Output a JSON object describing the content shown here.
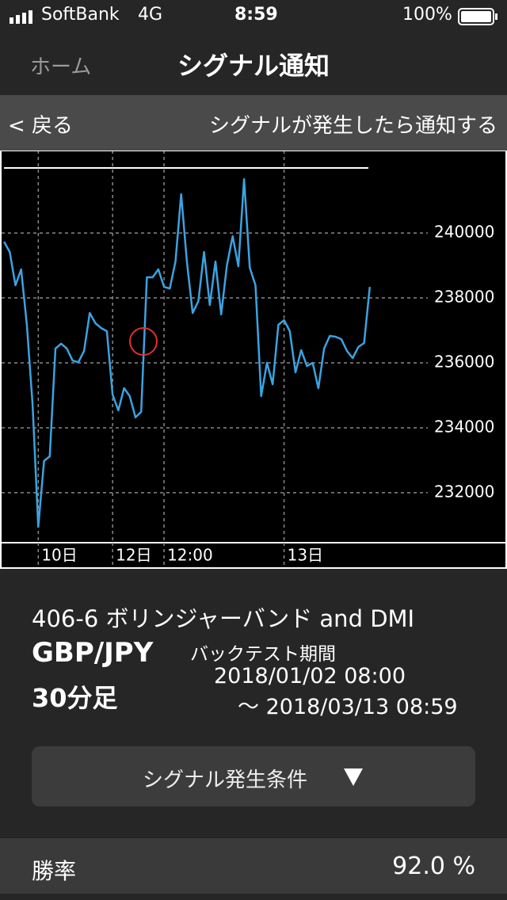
{
  "status_bar": {
    "carrier": "SoftBank",
    "network": "4G",
    "time": "8:59",
    "battery": "100%"
  },
  "nav": {
    "back_home": "ホーム",
    "title": "シグナル通知"
  },
  "sub_bar": {
    "back": "< 戻る",
    "action": "シグナルが発生したら通知する"
  },
  "chart_data": {
    "type": "line",
    "series": [
      {
        "color": "#3ba3e0",
        "values": [
          239730,
          239415,
          238390,
          238880,
          237170,
          234730,
          230950,
          232975,
          233120,
          236440,
          236590,
          236440,
          236070,
          236020,
          236365,
          237535,
          237220,
          237070,
          236975,
          235025,
          234535,
          235220,
          234975,
          234320,
          234490,
          238635,
          238635,
          238880,
          238340,
          238290,
          239120,
          241195,
          239120,
          237535,
          237900,
          239415,
          237780,
          239120,
          237490,
          239000,
          239900,
          238975,
          241660,
          238930,
          238390,
          234975,
          236000,
          235340,
          237170,
          237315,
          236975,
          235710,
          236390,
          235900,
          236000,
          235220,
          236440,
          236830,
          236805,
          236730,
          236365,
          236145,
          236490,
          236610,
          238340
        ]
      }
    ],
    "xlim": [
      -0.7,
      88
    ],
    "xticks": [
      {
        "value": 6,
        "label": "10日"
      },
      {
        "value": 19,
        "label": "12日"
      },
      {
        "value": 28,
        "label": "12:00"
      },
      {
        "value": 49,
        "label": "13日"
      }
    ],
    "ylim": [
      230460,
      242540
    ],
    "yticks": [
      232000,
      234000,
      236000,
      238000,
      240000
    ],
    "grid": true
  },
  "info": {
    "strategy": "406-6 ボリンジャーバンド and DMI",
    "pair": "GBP/JPY",
    "timeframe": "30分足",
    "period_label": "バックテスト期間",
    "period_start": "2018/01/02 08:00",
    "period_end": "～ 2018/03/13 08:59"
  },
  "button": {
    "label": "シグナル発生条件"
  },
  "stats": {
    "label": "勝率",
    "value": "92.0 %"
  }
}
